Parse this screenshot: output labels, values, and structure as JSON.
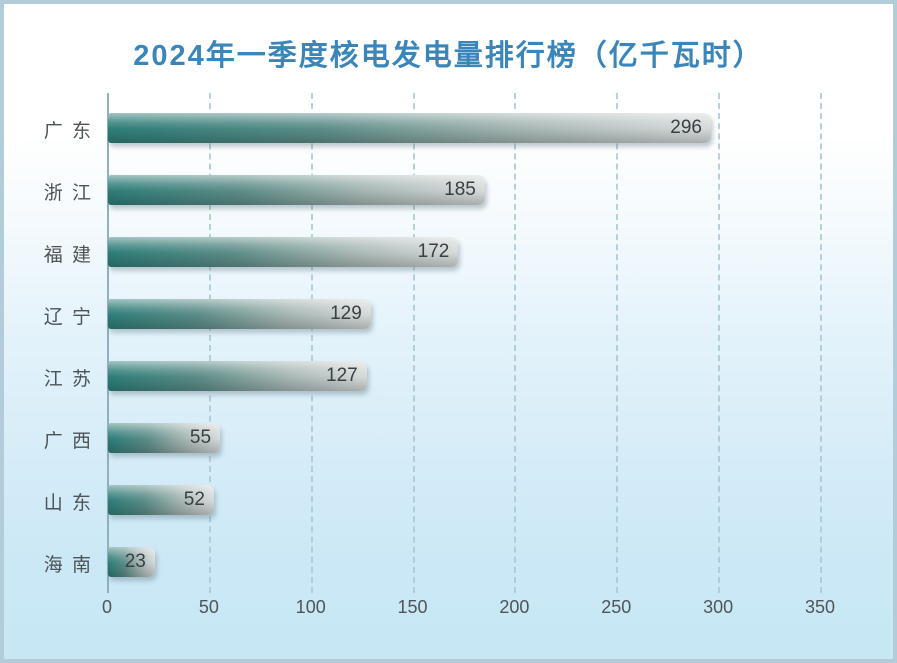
{
  "title": "2024年一季度核电发电量排行榜（亿千瓦时）",
  "colors": {
    "title_text": "#3a86ba",
    "bar_teal": "#2e7e79",
    "bar_silver": "#d6dbda",
    "axis_line": "#8fb0bc",
    "gridline": "#aac9d5",
    "category_text": "#4d5357",
    "value_text": "#3a3f42",
    "background_top": "#ffffff",
    "background_bottom": "#c7e7f5",
    "frame_border": "#b3ccda"
  },
  "chart_data": {
    "type": "bar",
    "orientation": "horizontal",
    "title": "2024年一季度核电发电量排行榜（亿千瓦时）",
    "categories": [
      "广 东",
      "浙 江",
      "福 建",
      "辽 宁",
      "江 苏",
      "广 西",
      "山 东",
      "海 南"
    ],
    "values": [
      296,
      185,
      172,
      129,
      127,
      55,
      52,
      23
    ],
    "xlabel": "",
    "ylabel": "",
    "xlim": [
      0,
      350
    ],
    "x_ticks": [
      0,
      50,
      100,
      150,
      200,
      250,
      300,
      350
    ],
    "grid": "dashed-vertical",
    "legend": "none",
    "value_labels": "inside-end"
  }
}
